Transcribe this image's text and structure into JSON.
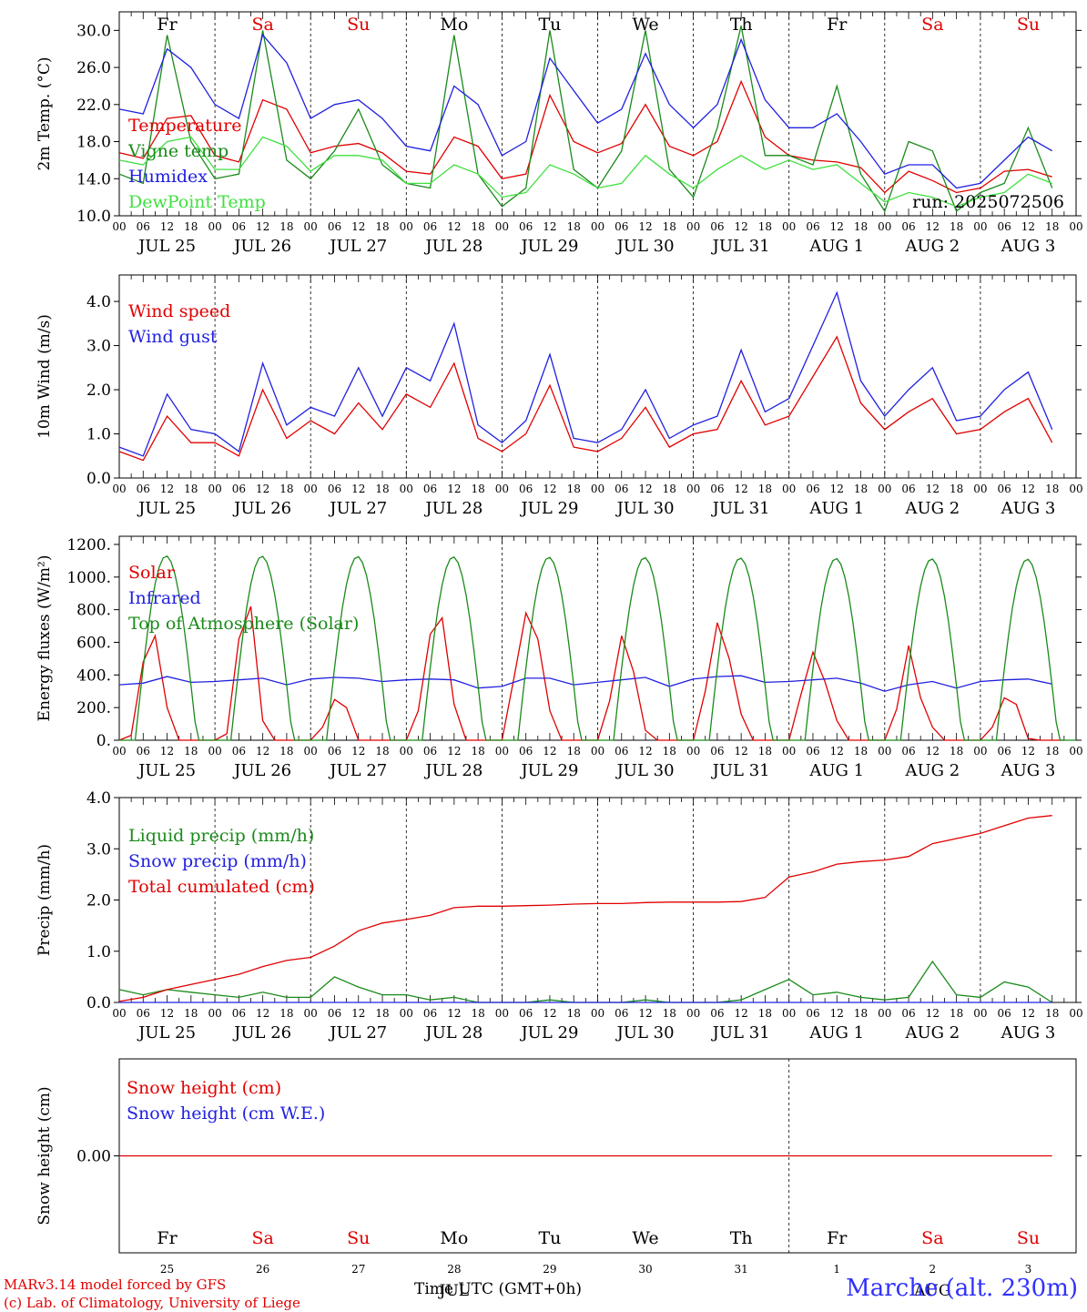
{
  "station": "Marche (alt. 230m)",
  "credits": [
    "MARv3.14 model forced by GFS",
    "(c) Lab. of Climatology, University of Liege"
  ],
  "x_axis_title": "Time UTC (GMT+0h)",
  "day_abbrev": [
    "Fr",
    "Sa",
    "Su",
    "Mo",
    "Tu",
    "We",
    "Th",
    "Fr",
    "Sa",
    "Su"
  ],
  "day_colors": [
    "#000000",
    "#e00000",
    "#e00000",
    "#000000",
    "#000000",
    "#000000",
    "#000000",
    "#000000",
    "#e00000",
    "#e00000"
  ],
  "date_labels": [
    "JUL 25",
    "JUL 26",
    "JUL 27",
    "JUL 28",
    "JUL 29",
    "JUL 30",
    "JUL 31",
    "AUG  1",
    "AUG  2",
    "AUG  3"
  ],
  "day_numbers": [
    "25",
    "26",
    "27",
    "28",
    "29",
    "30",
    "31",
    "1",
    "2",
    "3"
  ],
  "month_labels": [
    {
      "day": 3.5,
      "text": "JUL"
    },
    {
      "day": 8.5,
      "text": "AUG"
    }
  ],
  "hour_ticks": [
    "00",
    "06",
    "12",
    "18"
  ],
  "chart_data": [
    {
      "id": "temperature",
      "type": "line",
      "ylabel": "2m Temp. (°C)",
      "ylim": [
        10,
        32
      ],
      "yticks": [
        "10.0",
        "14.0",
        "18.0",
        "22.0",
        "26.0",
        "30.0"
      ],
      "run_label": "run: 2025072506",
      "series": [
        {
          "name": "Temperature",
          "color": "#e00000",
          "x_step_h": 6,
          "values": [
            16.8,
            16.2,
            20.5,
            20.8,
            16.5,
            15.8,
            22.5,
            21.5,
            16.8,
            17.5,
            17.8,
            16.8,
            14.8,
            14.5,
            18.5,
            17.5,
            14.0,
            14.5,
            23.0,
            18.0,
            16.8,
            17.8,
            22.0,
            17.5,
            16.5,
            18.0,
            24.5,
            18.5,
            16.5,
            16.0,
            15.8,
            15.2,
            12.5,
            14.8,
            13.8,
            12.5,
            13.0,
            14.8,
            15.0,
            14.2
          ]
        },
        {
          "name": "Vigne temp",
          "color": "#1a8a1a",
          "x_step_h": 6,
          "values": [
            14.5,
            13.5,
            29.5,
            18.0,
            14.0,
            14.5,
            30.0,
            16.0,
            14.0,
            17.0,
            21.5,
            15.5,
            13.5,
            13.0,
            29.5,
            14.5,
            11.0,
            13.0,
            30.0,
            15.0,
            13.0,
            17.0,
            30.0,
            15.0,
            12.0,
            19.5,
            30.5,
            16.5,
            16.5,
            15.5,
            24.0,
            14.5,
            10.5,
            18.0,
            17.0,
            10.5,
            12.5,
            13.5,
            19.5,
            13.0
          ]
        },
        {
          "name": "Humidex",
          "color": "#2020e0",
          "x_step_h": 6,
          "values": [
            21.5,
            21.0,
            28.0,
            26.0,
            22.0,
            20.5,
            29.5,
            26.5,
            20.5,
            22.0,
            22.5,
            20.5,
            17.5,
            17.0,
            24.0,
            22.0,
            16.5,
            18.0,
            27.0,
            23.5,
            20.0,
            21.5,
            27.5,
            22.0,
            19.5,
            22.0,
            29.0,
            22.5,
            19.5,
            19.5,
            21.0,
            18.0,
            14.5,
            15.5,
            15.5,
            13.0,
            13.5,
            16.0,
            18.5,
            17.0
          ]
        },
        {
          "name": "DewPoint Temp",
          "color": "#40e040",
          "x_step_h": 6,
          "values": [
            16.0,
            15.5,
            18.0,
            18.5,
            15.0,
            15.0,
            18.5,
            17.5,
            14.8,
            16.5,
            16.5,
            16.0,
            13.5,
            13.5,
            15.5,
            14.5,
            12.0,
            12.5,
            15.5,
            14.5,
            13.0,
            13.5,
            16.5,
            14.5,
            13.0,
            15.0,
            16.5,
            15.0,
            16.0,
            15.0,
            15.5,
            13.5,
            11.5,
            12.5,
            12.0,
            11.0,
            12.0,
            12.5,
            14.5,
            13.5
          ]
        }
      ]
    },
    {
      "id": "wind",
      "type": "line",
      "ylabel": "10m Wind (m/s)",
      "ylim": [
        0,
        4.6
      ],
      "yticks": [
        "0.0",
        "1.0",
        "2.0",
        "3.0",
        "4.0"
      ],
      "series": [
        {
          "name": "Wind speed",
          "color": "#e00000",
          "x_step_h": 6,
          "values": [
            0.6,
            0.4,
            1.4,
            0.8,
            0.8,
            0.5,
            2.0,
            0.9,
            1.3,
            1.0,
            1.7,
            1.1,
            1.9,
            1.6,
            2.6,
            0.9,
            0.6,
            1.0,
            2.1,
            0.7,
            0.6,
            0.9,
            1.6,
            0.7,
            1.0,
            1.1,
            2.2,
            1.2,
            1.4,
            2.3,
            3.2,
            1.7,
            1.1,
            1.5,
            1.8,
            1.0,
            1.1,
            1.5,
            1.8,
            0.8
          ]
        },
        {
          "name": "Wind gust",
          "color": "#2020e0",
          "x_step_h": 6,
          "values": [
            0.7,
            0.5,
            1.9,
            1.1,
            1.0,
            0.6,
            2.6,
            1.2,
            1.6,
            1.4,
            2.5,
            1.4,
            2.5,
            2.2,
            3.5,
            1.2,
            0.8,
            1.3,
            2.8,
            0.9,
            0.8,
            1.1,
            2.0,
            0.9,
            1.2,
            1.4,
            2.9,
            1.5,
            1.8,
            3.0,
            4.2,
            2.2,
            1.4,
            2.0,
            2.5,
            1.3,
            1.4,
            2.0,
            2.4,
            1.1
          ]
        }
      ]
    },
    {
      "id": "energy",
      "type": "line",
      "ylabel": "Energy fluxes (W/m²)",
      "ylim": [
        0,
        1250
      ],
      "yticks": [
        "0.",
        "200.",
        "400.",
        "600.",
        "800.",
        "1000.",
        "1200."
      ],
      "series": [
        {
          "name": "Solar",
          "color": "#e00000",
          "x_step_h": 3,
          "values": [
            0,
            30,
            480,
            640,
            200,
            0,
            0,
            0,
            0,
            40,
            620,
            820,
            120,
            0,
            0,
            0,
            0,
            80,
            250,
            200,
            0,
            0,
            0,
            0,
            0,
            180,
            650,
            750,
            220,
            0,
            0,
            0,
            0,
            380,
            780,
            620,
            180,
            0,
            0,
            0,
            0,
            240,
            640,
            420,
            60,
            0,
            0,
            0,
            0,
            300,
            720,
            500,
            160,
            0,
            0,
            0,
            0,
            280,
            540,
            360,
            120,
            0,
            0,
            0,
            0,
            190,
            580,
            260,
            80,
            0,
            0,
            0,
            0,
            80,
            260,
            220,
            10,
            0,
            0,
            0
          ]
        },
        {
          "name": "Infrared",
          "color": "#2020e0",
          "x_step_h": 6,
          "values": [
            340,
            350,
            390,
            355,
            360,
            370,
            380,
            340,
            375,
            385,
            380,
            360,
            370,
            375,
            370,
            320,
            330,
            380,
            380,
            340,
            355,
            370,
            385,
            330,
            375,
            390,
            395,
            355,
            360,
            370,
            380,
            350,
            300,
            340,
            360,
            320,
            360,
            370,
            375,
            345
          ]
        },
        {
          "name": "Top of Atmosphere (Solar)",
          "color": "#1a8a1a",
          "x_step_h": 1,
          "daylight_hours": [
            4,
            19.5
          ],
          "peak": [
            1130,
            1128,
            1126,
            1124,
            1122,
            1120,
            1117,
            1114,
            1112,
            1110
          ]
        }
      ]
    },
    {
      "id": "precip",
      "type": "line",
      "ylabel": "Precip (mm/h)",
      "ylim": [
        0,
        4.0
      ],
      "yticks": [
        "0.0",
        "1.0",
        "2.0",
        "3.0",
        "4.0"
      ],
      "series": [
        {
          "name": "Liquid precip (mm/h)",
          "color": "#1a8a1a",
          "x_step_h": 6,
          "values": [
            0.25,
            0.15,
            0.25,
            0.2,
            0.15,
            0.1,
            0.2,
            0.1,
            0.1,
            0.5,
            0.3,
            0.15,
            0.15,
            0.05,
            0.1,
            0.0,
            0.0,
            0.0,
            0.05,
            0.0,
            0.0,
            0.0,
            0.05,
            0.0,
            0.0,
            0.0,
            0.05,
            0.25,
            0.45,
            0.15,
            0.2,
            0.1,
            0.05,
            0.1,
            0.8,
            0.15,
            0.1,
            0.4,
            0.3,
            0.0
          ]
        },
        {
          "name": "Snow precip (mm/h)",
          "color": "#2020e0",
          "x_step_h": 6,
          "values": [
            0,
            0,
            0,
            0,
            0,
            0,
            0,
            0,
            0,
            0,
            0,
            0,
            0,
            0,
            0,
            0,
            0,
            0,
            0,
            0,
            0,
            0,
            0,
            0,
            0,
            0,
            0,
            0,
            0,
            0,
            0,
            0,
            0,
            0,
            0,
            0,
            0,
            0,
            0,
            0
          ]
        },
        {
          "name": "Total cumulated (cm)",
          "color": "#e00000",
          "x_step_h": 6,
          "values": [
            0.02,
            0.1,
            0.25,
            0.35,
            0.45,
            0.55,
            0.7,
            0.82,
            0.88,
            1.1,
            1.4,
            1.55,
            1.62,
            1.7,
            1.85,
            1.88,
            1.88,
            1.89,
            1.9,
            1.92,
            1.93,
            1.93,
            1.95,
            1.96,
            1.96,
            1.96,
            1.97,
            2.05,
            2.45,
            2.55,
            2.7,
            2.75,
            2.78,
            2.85,
            3.1,
            3.2,
            3.3,
            3.45,
            3.6,
            3.65
          ]
        }
      ]
    },
    {
      "id": "snow",
      "type": "line",
      "ylabel": "Snow height (cm)",
      "ylim": [
        -1,
        1
      ],
      "yticks": [
        "0.00"
      ],
      "series": [
        {
          "name": "Snow height (cm)",
          "color": "#e00000",
          "x_step_h": 6,
          "values": [
            0,
            0,
            0,
            0,
            0,
            0,
            0,
            0,
            0,
            0,
            0,
            0,
            0,
            0,
            0,
            0,
            0,
            0,
            0,
            0,
            0,
            0,
            0,
            0,
            0,
            0,
            0,
            0,
            0,
            0,
            0,
            0,
            0,
            0,
            0,
            0,
            0,
            0,
            0,
            0
          ]
        },
        {
          "name": "Snow height (cm W.E.)",
          "color": "#2020e0",
          "x_step_h": 6,
          "values": []
        }
      ]
    }
  ]
}
